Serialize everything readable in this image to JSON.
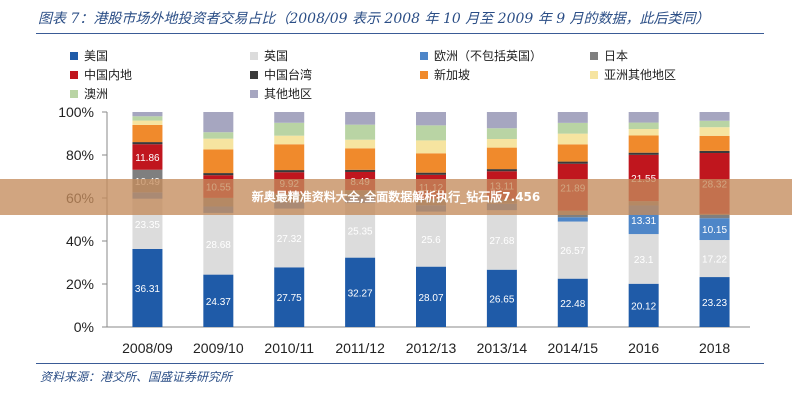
{
  "header": {
    "title": "图表 7：港股市场外地投资者交易占比（2008/09 表示 2008 年 10 月至 2009 年 9 月的数据，此后类同）"
  },
  "footer": {
    "source": "资料来源：港交所、国盛证券研究所"
  },
  "banner": {
    "text": "新奥最精准资料大全,全面数据解析执行_钻石版7.456"
  },
  "legend": [
    {
      "label": "美国",
      "color": "#1f5ba8",
      "icon": "square-marker"
    },
    {
      "label": "英国",
      "color": "#dcdcdc",
      "icon": "square-marker"
    },
    {
      "label": "欧洲（不包括英国）",
      "color": "#4e86c8",
      "icon": "square-marker"
    },
    {
      "label": "日本",
      "color": "#7f7f7f",
      "icon": "square-marker"
    },
    {
      "label": "中国内地",
      "color": "#c0161e",
      "icon": "square-marker"
    },
    {
      "label": "中国台湾",
      "color": "#3a3a3a",
      "icon": "square-marker"
    },
    {
      "label": "新加坡",
      "color": "#f08a2c",
      "icon": "square-marker"
    },
    {
      "label": "亚洲其他地区",
      "color": "#f6e4a0",
      "icon": "square-marker"
    },
    {
      "label": "澳洲",
      "color": "#b9d4a4",
      "icon": "square-marker"
    },
    {
      "label": "其他地区",
      "color": "#a6a6c0",
      "icon": "square-marker"
    }
  ],
  "chart_data": {
    "type": "bar",
    "stacked": true,
    "categories": [
      "2008/09",
      "2009/10",
      "2010/11",
      "2011/12",
      "2012/13",
      "2013/14",
      "2014/15",
      "2016",
      "2018"
    ],
    "y_ticks": [
      "0%",
      "20%",
      "40%",
      "60%",
      "80%",
      "100%"
    ],
    "ylim": [
      0,
      100
    ],
    "series": [
      {
        "name": "美国",
        "values": [
          36.31,
          24.37,
          27.75,
          32.27,
          28.07,
          26.65,
          22.48,
          20.12,
          23.23
        ],
        "color": "#1f5ba8"
      },
      {
        "name": "英国",
        "values": [
          23.35,
          28.68,
          27.32,
          25.35,
          25.6,
          27.68,
          26.57,
          23.1,
          17.22
        ],
        "color": "#dcdcdc"
      },
      {
        "name": "欧洲（不包括英国）",
        "values": [
          3,
          3,
          3,
          3,
          3,
          3,
          2,
          13.31,
          10.15
        ],
        "color": "#4e86c8"
      },
      {
        "name": "日本",
        "values": [
          10.49,
          4,
          4,
          3,
          3,
          2,
          3,
          2,
          2
        ],
        "color": "#7f7f7f"
      },
      {
        "name": "中国内地",
        "values": [
          11.86,
          10.55,
          9.92,
          8.49,
          11.12,
          13.11,
          21.89,
          21.55,
          28.32
        ],
        "color": "#c0161e"
      },
      {
        "name": "中国台湾",
        "values": [
          1,
          1,
          1,
          1,
          1,
          1,
          1,
          1,
          1
        ],
        "color": "#3a3a3a"
      },
      {
        "name": "新加坡",
        "values": [
          8,
          11,
          12,
          10,
          9,
          10,
          8,
          8,
          7
        ],
        "color": "#f08a2c"
      },
      {
        "name": "亚洲其他地区",
        "values": [
          2,
          5,
          4,
          4,
          6,
          4,
          5,
          3,
          4
        ],
        "color": "#f6e4a0"
      },
      {
        "name": "澳洲",
        "values": [
          2,
          3,
          6,
          7,
          7,
          5,
          5,
          3,
          3
        ],
        "color": "#b9d4a4"
      },
      {
        "name": "其他地区",
        "values": [
          1.99,
          9.4,
          5.01,
          5.89,
          6.21,
          7.56,
          5.06,
          4.92,
          4.08
        ],
        "color": "#a6a6c0"
      }
    ],
    "data_labels": [
      {
        "series": "美国",
        "values": [
          "36.31",
          "24.37",
          "27.75",
          "32.27",
          "28.07",
          "26.65",
          "22.48",
          "20.12",
          "23.23"
        ]
      },
      {
        "series": "英国",
        "values": [
          "23.35",
          "28.68",
          "27.32",
          "25.35",
          "25.6",
          "27.68",
          "26.57",
          "23.1",
          "17.22"
        ]
      },
      {
        "series": "欧洲（不包括英国）",
        "values": [
          "",
          "",
          "",
          "",
          "",
          "",
          "",
          "13.31",
          "10.15"
        ]
      },
      {
        "series": "日本",
        "values": [
          "10.49",
          "",
          "",
          "",
          "",
          "",
          "",
          "",
          ""
        ]
      },
      {
        "series": "中国内地",
        "values": [
          "11.86",
          "10.55",
          "9.92",
          "8.49",
          "11.12",
          "13.11",
          "21.89",
          "21.55",
          "28.32"
        ]
      }
    ],
    "grid": false,
    "legend_position": "top"
  }
}
